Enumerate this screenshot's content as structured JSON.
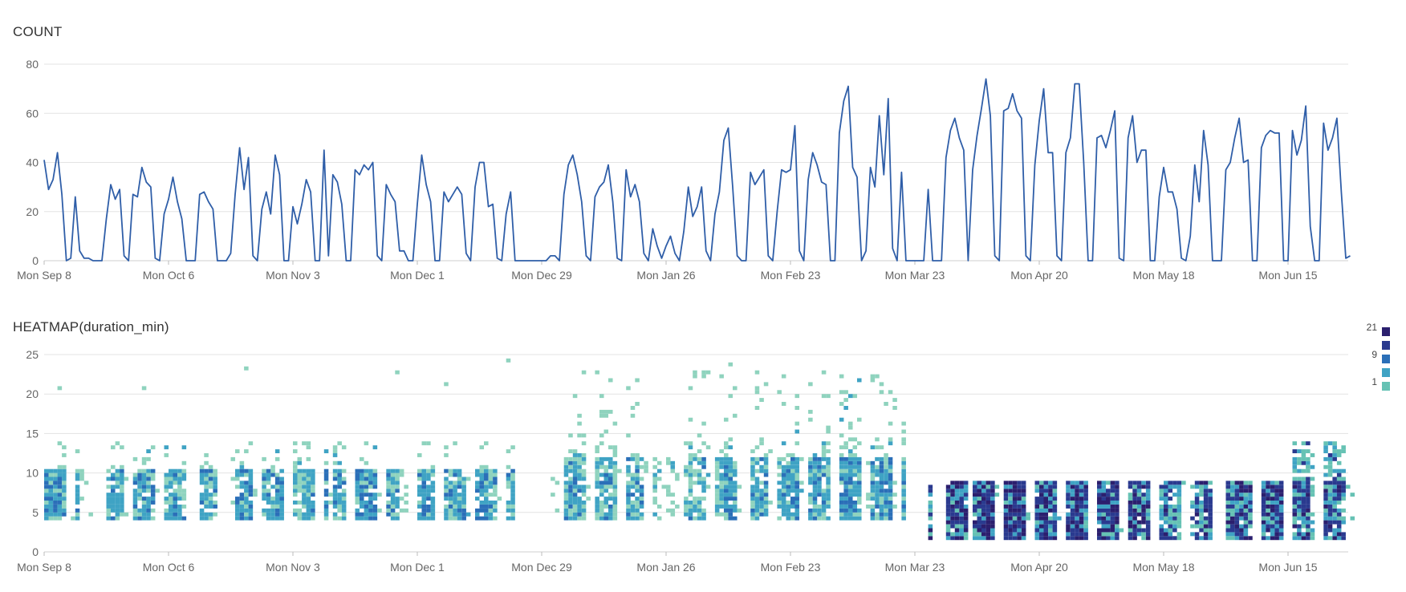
{
  "chart_data": [
    {
      "type": "line",
      "title": "COUNT",
      "xlabel": "",
      "ylabel": "",
      "ylim": [
        0,
        80
      ],
      "yticks": [
        "0",
        "20",
        "40",
        "60",
        "80"
      ],
      "xticks": [
        "Mon Sep 8",
        "Mon Oct 6",
        "Mon Nov 3",
        "Mon Dec 1",
        "Mon Dec 29",
        "Mon Jan 26",
        "Mon Feb 23",
        "Mon Mar 23",
        "Mon Apr 20",
        "Mon May 18",
        "Mon Jun 15"
      ],
      "x_start": "Mon Sep 8",
      "x_step": "1 day",
      "grid": true,
      "color": "#2f5ea8",
      "values": [
        41,
        29,
        33,
        44,
        27,
        0,
        1,
        26,
        4,
        1,
        1,
        0,
        0,
        0,
        17,
        31,
        25,
        29,
        2,
        0,
        27,
        26,
        38,
        32,
        30,
        1,
        0,
        19,
        25,
        34,
        24,
        17,
        0,
        0,
        0,
        27,
        28,
        24,
        21,
        0,
        0,
        0,
        3,
        27,
        46,
        29,
        42,
        2,
        0,
        21,
        28,
        19,
        43,
        35,
        0,
        0,
        22,
        15,
        23,
        33,
        28,
        0,
        0,
        45,
        2,
        35,
        32,
        23,
        0,
        0,
        37,
        35,
        39,
        37,
        40,
        2,
        0,
        31,
        27,
        24,
        4,
        4,
        0,
        0,
        23,
        43,
        31,
        24,
        0,
        0,
        28,
        24,
        27,
        30,
        27,
        3,
        0,
        30,
        40,
        40,
        22,
        23,
        1,
        0,
        19,
        28,
        0,
        0,
        0,
        0,
        0,
        0,
        0,
        0,
        2,
        2,
        0,
        27,
        39,
        43,
        35,
        24,
        2,
        0,
        26,
        30,
        32,
        39,
        24,
        1,
        0,
        37,
        26,
        31,
        24,
        3,
        0,
        13,
        6,
        1,
        6,
        10,
        3,
        0,
        12,
        30,
        18,
        22,
        30,
        4,
        0,
        19,
        28,
        49,
        54,
        30,
        2,
        0,
        0,
        36,
        31,
        34,
        37,
        2,
        0,
        20,
        37,
        36,
        37,
        55,
        4,
        0,
        33,
        44,
        39,
        32,
        31,
        0,
        0,
        52,
        65,
        71,
        38,
        34,
        0,
        4,
        38,
        30,
        59,
        35,
        66,
        5,
        0,
        36,
        0,
        0,
        0,
        0,
        0,
        29,
        0,
        0,
        0,
        42,
        53,
        58,
        50,
        45,
        0,
        37,
        51,
        62,
        74,
        59,
        2,
        0,
        61,
        62,
        68,
        61,
        58,
        2,
        0,
        39,
        57,
        70,
        44,
        44,
        2,
        0,
        44,
        50,
        72,
        72,
        40,
        0,
        0,
        50,
        51,
        46,
        53,
        61,
        1,
        0,
        50,
        59,
        40,
        45,
        45,
        0,
        0,
        26,
        38,
        28,
        28,
        21,
        1,
        0,
        10,
        39,
        24,
        53,
        39,
        0,
        0,
        0,
        37,
        40,
        50,
        58,
        40,
        41,
        0,
        0,
        46,
        51,
        53,
        52,
        52,
        0,
        0,
        53,
        43,
        49,
        63,
        14,
        0,
        0,
        56,
        45,
        50,
        58,
        28,
        1,
        2
      ]
    },
    {
      "type": "heatmap",
      "title": "HEATMAP(duration_min)",
      "xlabel": "",
      "ylabel": "",
      "ylim": [
        0,
        25
      ],
      "yticks": [
        "0",
        "5",
        "10",
        "15",
        "20",
        "25"
      ],
      "xticks": [
        "Mon Sep 8",
        "Mon Oct 6",
        "Mon Nov 3",
        "Mon Dec 1",
        "Mon Dec 29",
        "Mon Jan 26",
        "Mon Feb 23",
        "Mon Mar 23",
        "Mon Apr 20",
        "Mon May 18",
        "Mon Jun 15"
      ],
      "legend": {
        "labels": [
          "21",
          "9",
          "1"
        ],
        "position": "right"
      },
      "colors": [
        "#8fd3be",
        "#66c2b4",
        "#3fa3c4",
        "#2b6fb8",
        "#2a3a8f",
        "#2b1f6e"
      ],
      "note_bins": "count per day per 0.5-minute bin"
    }
  ]
}
